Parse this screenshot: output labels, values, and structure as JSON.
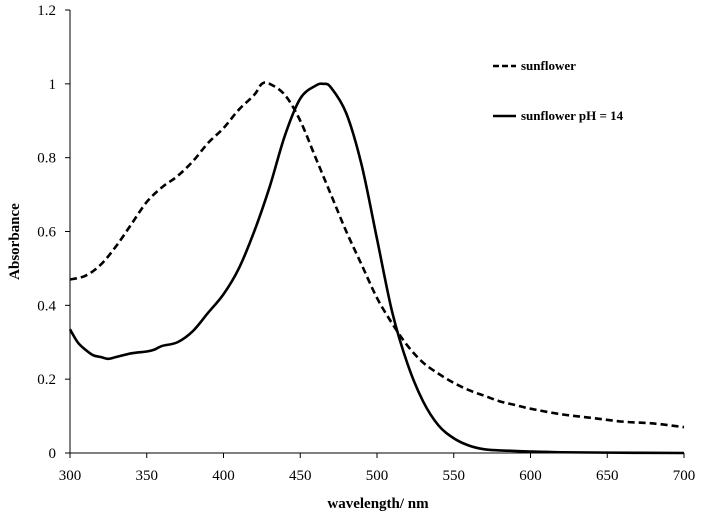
{
  "chart_data": {
    "type": "line",
    "title": "",
    "xlabel": "wavelength/ nm",
    "ylabel": "Absorbance",
    "xlim": [
      300,
      700
    ],
    "ylim": [
      0,
      1.2
    ],
    "x_ticks": [
      300,
      350,
      400,
      450,
      500,
      550,
      600,
      650,
      700
    ],
    "y_ticks": [
      0,
      0.2,
      0.4,
      0.6,
      0.8,
      1,
      1.2
    ],
    "x_tick_labels": [
      "300",
      "350",
      "400",
      "450",
      "500",
      "550",
      "600",
      "650",
      "700"
    ],
    "y_tick_labels": [
      "0",
      "0.2",
      "0.4",
      "0.6",
      "0.8",
      "1",
      "1.2"
    ],
    "grid": false,
    "legend_position": "top-right",
    "series": [
      {
        "name": "sunflower",
        "style": "dashed",
        "color": "#000000",
        "x": [
          300,
          310,
          320,
          330,
          340,
          350,
          360,
          370,
          380,
          390,
          400,
          410,
          420,
          425,
          430,
          440,
          450,
          460,
          470,
          480,
          490,
          500,
          510,
          520,
          530,
          540,
          550,
          560,
          570,
          580,
          590,
          600,
          620,
          640,
          660,
          680,
          700
        ],
        "y": [
          0.47,
          0.48,
          0.51,
          0.56,
          0.62,
          0.68,
          0.72,
          0.75,
          0.79,
          0.84,
          0.88,
          0.93,
          0.97,
          1.0,
          1.0,
          0.97,
          0.9,
          0.8,
          0.7,
          0.6,
          0.51,
          0.42,
          0.35,
          0.29,
          0.245,
          0.215,
          0.19,
          0.17,
          0.155,
          0.14,
          0.13,
          0.12,
          0.105,
          0.095,
          0.085,
          0.08,
          0.07
        ]
      },
      {
        "name": "sunflower pH = 14",
        "style": "solid",
        "color": "#000000",
        "x": [
          300,
          305,
          310,
          315,
          320,
          325,
          330,
          340,
          350,
          355,
          360,
          370,
          380,
          390,
          400,
          410,
          420,
          430,
          440,
          450,
          460,
          465,
          470,
          480,
          490,
          500,
          510,
          520,
          530,
          540,
          550,
          560,
          570,
          580,
          600,
          620,
          650,
          700
        ],
        "y": [
          0.335,
          0.3,
          0.28,
          0.265,
          0.26,
          0.255,
          0.26,
          0.27,
          0.275,
          0.28,
          0.29,
          0.3,
          0.33,
          0.38,
          0.43,
          0.5,
          0.6,
          0.72,
          0.86,
          0.96,
          0.995,
          1.0,
          0.99,
          0.92,
          0.78,
          0.58,
          0.38,
          0.24,
          0.14,
          0.075,
          0.04,
          0.02,
          0.01,
          0.007,
          0.004,
          0.002,
          0.001,
          0.0
        ]
      }
    ]
  }
}
